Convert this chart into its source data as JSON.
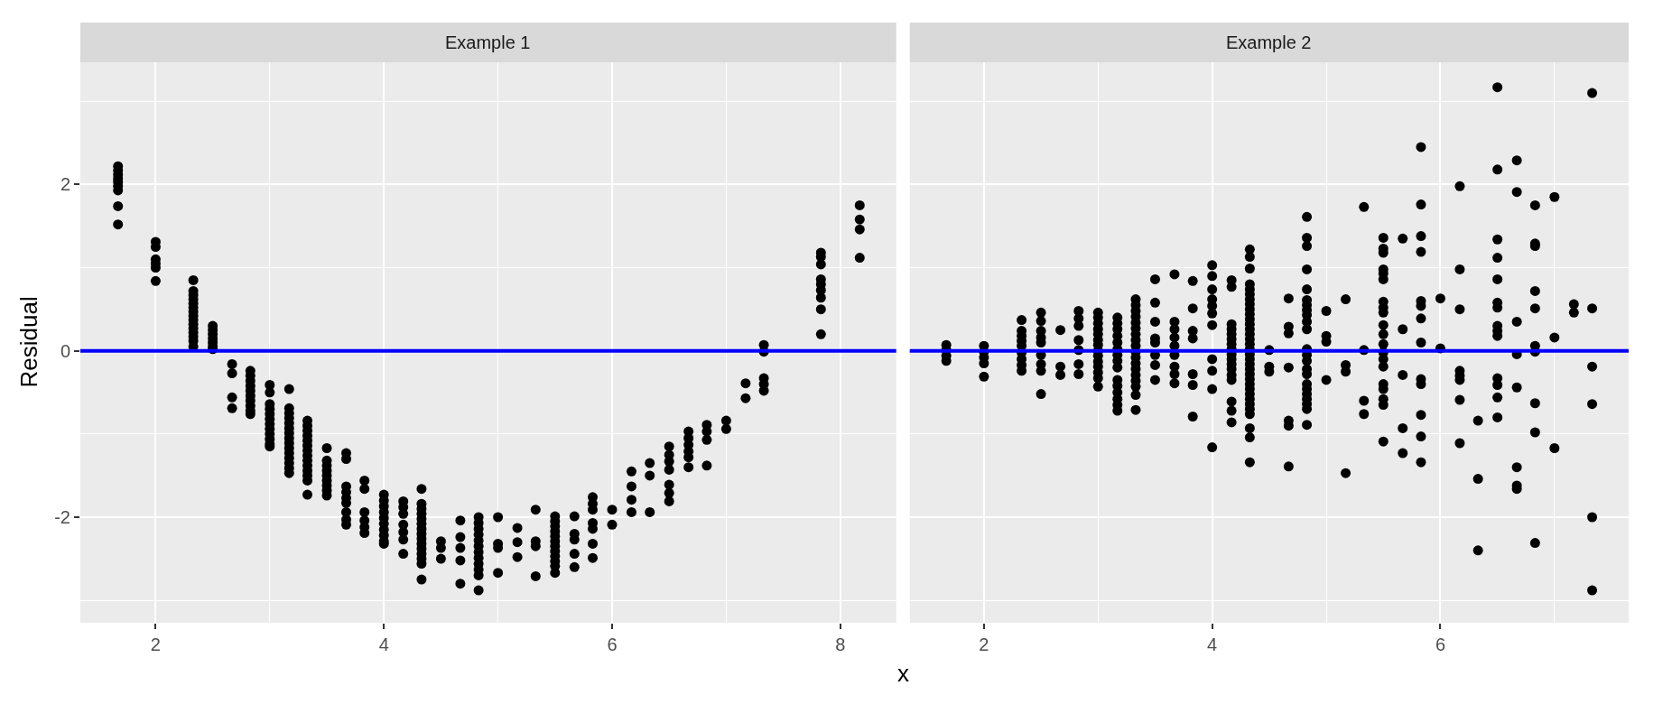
{
  "chart_data": [
    {
      "type": "scatter",
      "title": "Example 1",
      "xlabel": "x",
      "ylabel": "Residual",
      "marker": "circle",
      "grid": true,
      "xlim": [
        1.34,
        8.49
      ],
      "xticks": [
        2,
        4,
        6,
        8
      ],
      "ylim": [
        -3.27,
        3.47
      ],
      "yticks": [
        -2,
        0,
        2
      ],
      "ref_lines": [
        {
          "axis": "y",
          "value": 0,
          "color": "#0000ff"
        }
      ],
      "series": [
        {
          "color": "#000000",
          "x": [
            1.67,
            1.67,
            1.67,
            1.67,
            1.67,
            1.67,
            1.67,
            1.67,
            1.67,
            2,
            2,
            2,
            2,
            2,
            2,
            2.33,
            2.33,
            2.33,
            2.33,
            2.33,
            2.33,
            2.33,
            2.33,
            2.33,
            2.33,
            2.33,
            2.33,
            2.33,
            2.33,
            2.33,
            2.5,
            2.5,
            2.5,
            2.5,
            2.5,
            2.5,
            2.5,
            2.67,
            2.67,
            2.67,
            2.67,
            2.83,
            2.83,
            2.83,
            2.83,
            2.83,
            2.83,
            2.83,
            2.83,
            2.83,
            2.83,
            3,
            3,
            3,
            3,
            3,
            3,
            3,
            3,
            3,
            3,
            3,
            3,
            3.17,
            3.17,
            3.17,
            3.17,
            3.17,
            3.17,
            3.17,
            3.17,
            3.17,
            3.17,
            3.17,
            3.17,
            3.17,
            3.17,
            3.17,
            3.33,
            3.33,
            3.33,
            3.33,
            3.33,
            3.33,
            3.33,
            3.33,
            3.33,
            3.33,
            3.33,
            3.33,
            3.33,
            3.33,
            3.5,
            3.5,
            3.5,
            3.5,
            3.5,
            3.5,
            3.5,
            3.5,
            3.5,
            3.67,
            3.67,
            3.67,
            3.67,
            3.67,
            3.67,
            3.67,
            3.67,
            3.67,
            3.83,
            3.83,
            3.83,
            3.83,
            3.83,
            3.83,
            4,
            4,
            4,
            4,
            4,
            4,
            4,
            4,
            4,
            4,
            4.17,
            4.17,
            4.17,
            4.17,
            4.17,
            4.17,
            4.17,
            4.33,
            4.33,
            4.33,
            4.33,
            4.33,
            4.33,
            4.33,
            4.33,
            4.33,
            4.33,
            4.33,
            4.33,
            4.33,
            4.33,
            4.33,
            4.5,
            4.5,
            4.5,
            4.67,
            4.67,
            4.67,
            4.67,
            4.67,
            4.83,
            4.83,
            4.83,
            4.83,
            4.83,
            4.83,
            4.83,
            4.83,
            4.83,
            4.83,
            4.83,
            4.83,
            5,
            5,
            5,
            5,
            5.17,
            5.17,
            5.17,
            5.33,
            5.33,
            5.33,
            5.33,
            5.5,
            5.5,
            5.5,
            5.5,
            5.5,
            5.5,
            5.5,
            5.5,
            5.5,
            5.5,
            5.5,
            5.5,
            5.67,
            5.67,
            5.67,
            5.67,
            5.67,
            5.83,
            5.83,
            5.83,
            5.83,
            5.83,
            5.83,
            5.83,
            6,
            6,
            6.17,
            6.17,
            6.17,
            6.17,
            6.33,
            6.33,
            6.33,
            6.5,
            6.5,
            6.5,
            6.5,
            6.5,
            6.5,
            6.5,
            6.67,
            6.67,
            6.67,
            6.67,
            6.67,
            6.67,
            6.83,
            6.83,
            6.83,
            6.83,
            7,
            7,
            7.17,
            7.17,
            7.33,
            7.33,
            7.33,
            7.33,
            7.33,
            7.83,
            7.83,
            7.83,
            7.83,
            7.83,
            7.83,
            7.83,
            7.83,
            7.83,
            8.17,
            8.17,
            8.17,
            8.17
          ],
          "values": [
            2.22,
            2.17,
            2.12,
            2.07,
            2.03,
            1.98,
            1.93,
            1.74,
            1.52,
            1.31,
            1.25,
            1.1,
            1.05,
            1.0,
            0.84,
            0.85,
            0.72,
            0.67,
            0.62,
            0.57,
            0.52,
            0.47,
            0.42,
            0.37,
            0.32,
            0.27,
            0.22,
            0.17,
            0.12,
            0.05,
            0.3,
            0.25,
            0.2,
            0.15,
            0.1,
            0.05,
            0.02,
            -0.16,
            -0.27,
            -0.56,
            -0.69,
            -0.24,
            -0.3,
            -0.36,
            -0.42,
            -0.48,
            -0.54,
            -0.6,
            -0.66,
            -0.72,
            -0.76,
            -0.41,
            -0.5,
            -0.64,
            -0.7,
            -0.76,
            -0.82,
            -0.88,
            -0.94,
            -1.0,
            -1.06,
            -1.12,
            -1.15,
            -0.46,
            -0.69,
            -0.75,
            -0.81,
            -0.87,
            -0.93,
            -0.99,
            -1.05,
            -1.11,
            -1.17,
            -1.23,
            -1.29,
            -1.35,
            -1.41,
            -1.47,
            -0.84,
            -0.9,
            -0.96,
            -1.02,
            -1.08,
            -1.14,
            -1.2,
            -1.26,
            -1.32,
            -1.38,
            -1.44,
            -1.5,
            -1.56,
            -1.73,
            -1.17,
            -1.32,
            -1.38,
            -1.44,
            -1.5,
            -1.56,
            -1.62,
            -1.68,
            -1.74,
            -1.23,
            -1.3,
            -1.63,
            -1.7,
            -1.77,
            -1.83,
            -1.94,
            -2.03,
            -2.09,
            -1.56,
            -1.66,
            -1.94,
            -2.04,
            -2.12,
            -2.19,
            -1.73,
            -1.8,
            -1.87,
            -1.94,
            -2.01,
            -2.08,
            -2.15,
            -2.22,
            -2.29,
            -2.32,
            -1.81,
            -1.88,
            -1.96,
            -2.09,
            -2.18,
            -2.27,
            -2.44,
            -1.66,
            -1.84,
            -1.9,
            -1.96,
            -2.02,
            -2.08,
            -2.14,
            -2.2,
            -2.26,
            -2.32,
            -2.38,
            -2.44,
            -2.5,
            -2.56,
            -2.75,
            -2.29,
            -2.37,
            -2.5,
            -2.04,
            -2.24,
            -2.37,
            -2.52,
            -2.8,
            -2.0,
            -2.07,
            -2.14,
            -2.21,
            -2.28,
            -2.35,
            -2.42,
            -2.49,
            -2.56,
            -2.63,
            -2.7,
            -2.88,
            -2.0,
            -2.32,
            -2.37,
            -2.67,
            -2.13,
            -2.3,
            -2.48,
            -1.91,
            -2.29,
            -2.35,
            -2.71,
            -1.99,
            -2.05,
            -2.11,
            -2.17,
            -2.23,
            -2.29,
            -2.35,
            -2.41,
            -2.47,
            -2.53,
            -2.59,
            -2.67,
            -1.99,
            -2.2,
            -2.27,
            -2.44,
            -2.6,
            -1.76,
            -1.84,
            -1.91,
            -2.07,
            -2.14,
            -2.32,
            -2.49,
            -1.91,
            -2.09,
            -1.45,
            -1.63,
            -1.79,
            -1.94,
            -1.35,
            -1.5,
            -1.94,
            -1.15,
            -1.25,
            -1.33,
            -1.43,
            -1.61,
            -1.71,
            -1.81,
            -0.97,
            -1.05,
            -1.13,
            -1.21,
            -1.28,
            -1.4,
            -0.89,
            -0.97,
            -1.07,
            -1.38,
            -0.84,
            -0.94,
            -0.39,
            -0.57,
            0.07,
            -0.01,
            -0.33,
            -0.4,
            -0.48,
            1.18,
            1.13,
            1.04,
            0.86,
            0.8,
            0.73,
            0.64,
            0.5,
            0.2,
            1.75,
            1.58,
            1.46,
            1.12
          ]
        }
      ]
    },
    {
      "type": "scatter",
      "title": "Example 2",
      "marker": "circle",
      "grid": true,
      "tick_labels": "x",
      "xlim": [
        1.35,
        7.65
      ],
      "xticks": [
        2,
        4,
        6
      ],
      "ylim": [
        -3.27,
        3.47
      ],
      "yticks": [
        -2,
        0,
        2
      ],
      "ref_lines": [
        {
          "axis": "y",
          "value": 0,
          "color": "#0000ff"
        }
      ],
      "series": [
        {
          "color": "#000000",
          "x": [
            1.67,
            1.67,
            1.67,
            1.67,
            2,
            2,
            2,
            2,
            2,
            2.33,
            2.33,
            2.33,
            2.33,
            2.33,
            2.33,
            2.33,
            2.33,
            2.33,
            2.5,
            2.5,
            2.5,
            2.5,
            2.5,
            2.5,
            2.5,
            2.5,
            2.5,
            2.67,
            2.67,
            2.67,
            2.83,
            2.83,
            2.83,
            2.83,
            2.83,
            2.83,
            2.83,
            3,
            3,
            3,
            3,
            3,
            3,
            3,
            3,
            3,
            3,
            3,
            3,
            3,
            3,
            3.17,
            3.17,
            3.17,
            3.17,
            3.17,
            3.17,
            3.17,
            3.17,
            3.17,
            3.17,
            3.17,
            3.17,
            3.17,
            3.17,
            3.17,
            3.33,
            3.33,
            3.33,
            3.33,
            3.33,
            3.33,
            3.33,
            3.33,
            3.33,
            3.33,
            3.33,
            3.33,
            3.33,
            3.33,
            3.33,
            3.33,
            3.33,
            3.33,
            3.5,
            3.5,
            3.5,
            3.5,
            3.5,
            3.5,
            3.5,
            3.5,
            3.67,
            3.67,
            3.67,
            3.67,
            3.67,
            3.67,
            3.67,
            3.67,
            3.67,
            3.83,
            3.83,
            3.83,
            3.83,
            3.83,
            3.83,
            3.83,
            4,
            4,
            4,
            4,
            4,
            4,
            4,
            4,
            4,
            4,
            4,
            4.17,
            4.17,
            4.17,
            4.17,
            4.17,
            4.17,
            4.17,
            4.17,
            4.17,
            4.17,
            4.17,
            4.17,
            4.17,
            4.17,
            4.17,
            4.17,
            4.17,
            4.33,
            4.33,
            4.33,
            4.33,
            4.33,
            4.33,
            4.33,
            4.33,
            4.33,
            4.33,
            4.33,
            4.33,
            4.33,
            4.33,
            4.33,
            4.33,
            4.33,
            4.33,
            4.33,
            4.33,
            4.33,
            4.33,
            4.33,
            4.33,
            4.33,
            4.33,
            4.33,
            4.33,
            4.33,
            4.33,
            4.33,
            4.33,
            4.33,
            4.5,
            4.5,
            4.5,
            4.67,
            4.67,
            4.67,
            4.67,
            4.67,
            4.67,
            4.67,
            4.83,
            4.83,
            4.83,
            4.83,
            4.83,
            4.83,
            4.83,
            4.83,
            4.83,
            4.83,
            4.83,
            4.83,
            4.83,
            4.83,
            4.83,
            4.83,
            4.83,
            4.83,
            4.83,
            4.83,
            4.83,
            4.83,
            4.83,
            5,
            5,
            5,
            5,
            5.17,
            5.17,
            5.17,
            5.17,
            5.33,
            5.33,
            5.33,
            5.33,
            5.5,
            5.5,
            5.5,
            5.5,
            5.5,
            5.5,
            5.5,
            5.5,
            5.5,
            5.5,
            5.5,
            5.5,
            5.5,
            5.5,
            5.5,
            5.5,
            5.5,
            5.5,
            5.5,
            5.5,
            5.67,
            5.67,
            5.67,
            5.67,
            5.67,
            5.83,
            5.83,
            5.83,
            5.83,
            5.83,
            5.83,
            5.83,
            5.83,
            5.83,
            5.83,
            5.83,
            5.83,
            5.83,
            6,
            6,
            6.17,
            6.17,
            6.17,
            6.17,
            6.17,
            6.17,
            6.17,
            6.17,
            6.33,
            6.33,
            6.33,
            6.5,
            6.5,
            6.5,
            6.5,
            6.5,
            6.5,
            6.5,
            6.5,
            6.5,
            6.5,
            6.5,
            6.5,
            6.5,
            6.5,
            6.67,
            6.67,
            6.67,
            6.67,
            6.67,
            6.67,
            6.67,
            6.67,
            6.83,
            6.83,
            6.83,
            6.83,
            6.83,
            6.83,
            6.83,
            6.83,
            6.83,
            6.83,
            7,
            7,
            7,
            7.17,
            7.17,
            7.33,
            7.33,
            7.33,
            7.33,
            7.33,
            7.33
          ],
          "values": [
            0.07,
            0.01,
            -0.06,
            -0.12,
            0.06,
            -0.01,
            -0.08,
            -0.15,
            -0.31,
            0.37,
            0.24,
            0.18,
            0.12,
            0.06,
            -0.02,
            -0.1,
            -0.17,
            -0.24,
            0.46,
            0.36,
            0.24,
            0.16,
            0.1,
            -0.05,
            -0.16,
            -0.24,
            -0.52,
            0.25,
            -0.19,
            -0.29,
            0.48,
            0.39,
            0.3,
            0.13,
            0.01,
            -0.16,
            -0.28,
            0.46,
            0.4,
            0.33,
            0.26,
            0.2,
            0.13,
            0.07,
            0.0,
            -0.06,
            -0.13,
            -0.19,
            -0.26,
            -0.33,
            -0.43,
            0.4,
            0.33,
            0.26,
            0.18,
            0.1,
            0.02,
            -0.05,
            -0.12,
            -0.2,
            -0.35,
            -0.42,
            -0.5,
            -0.58,
            -0.65,
            -0.72,
            0.62,
            0.55,
            0.48,
            0.41,
            0.34,
            0.27,
            0.2,
            0.13,
            0.06,
            -0.01,
            -0.08,
            -0.15,
            -0.22,
            -0.29,
            -0.36,
            -0.43,
            -0.53,
            -0.71,
            0.86,
            0.58,
            0.35,
            0.15,
            0.1,
            -0.05,
            -0.17,
            -0.35,
            0.92,
            0.35,
            0.26,
            0.16,
            0.06,
            -0.05,
            -0.19,
            -0.28,
            -0.39,
            0.84,
            0.51,
            0.24,
            0.15,
            -0.28,
            -0.41,
            -0.79,
            1.03,
            0.9,
            0.74,
            0.62,
            0.54,
            0.45,
            0.31,
            -0.1,
            -0.24,
            -0.46,
            -1.16,
            0.85,
            0.77,
            0.32,
            0.26,
            0.2,
            0.14,
            0.08,
            0.02,
            -0.04,
            -0.1,
            -0.16,
            -0.22,
            -0.29,
            -0.35,
            -0.61,
            -0.72,
            -0.86,
            1.22,
            1.13,
            0.99,
            0.8,
            0.74,
            0.68,
            0.62,
            0.56,
            0.5,
            0.44,
            0.38,
            0.32,
            0.26,
            0.2,
            0.14,
            0.08,
            0.02,
            -0.04,
            -0.1,
            -0.16,
            -0.22,
            -0.28,
            -0.34,
            -0.4,
            -0.46,
            -0.52,
            -0.58,
            -0.64,
            -0.7,
            -0.76,
            -0.93,
            -1.04,
            -1.34,
            0.01,
            -0.19,
            -0.25,
            0.63,
            0.29,
            0.21,
            -0.2,
            -0.84,
            -0.9,
            -1.39,
            1.61,
            1.36,
            1.26,
            0.98,
            0.74,
            0.61,
            0.55,
            0.49,
            0.43,
            0.35,
            0.26,
            0.02,
            -0.05,
            -0.12,
            -0.22,
            -0.28,
            -0.4,
            -0.46,
            -0.52,
            -0.58,
            -0.64,
            -0.7,
            -0.89,
            0.48,
            0.18,
            0.11,
            -0.35,
            0.62,
            -0.17,
            -0.25,
            -1.47,
            1.73,
            0.01,
            -0.6,
            -0.76,
            1.36,
            1.23,
            1.18,
            0.98,
            0.93,
            0.86,
            0.59,
            0.52,
            0.46,
            0.31,
            0.2,
            0.08,
            -0.02,
            -0.1,
            -0.19,
            -0.4,
            -0.46,
            -0.58,
            -0.65,
            -1.09,
            1.35,
            0.26,
            -0.29,
            -0.93,
            -1.23,
            2.45,
            1.76,
            1.38,
            1.19,
            0.6,
            0.54,
            0.39,
            0.1,
            -0.34,
            -0.4,
            -0.77,
            -1.03,
            -1.34,
            0.63,
            0.03,
            1.98,
            0.98,
            0.5,
            -0.24,
            -0.3,
            -0.35,
            -0.59,
            -1.11,
            -0.84,
            -1.54,
            -2.4,
            3.17,
            2.18,
            1.34,
            1.12,
            0.86,
            0.58,
            0.52,
            0.3,
            0.24,
            0.18,
            -0.33,
            -0.41,
            -0.56,
            -0.8,
            2.29,
            1.91,
            0.35,
            -0.04,
            -0.44,
            -1.4,
            -1.62,
            -1.66,
            1.75,
            1.29,
            1.26,
            0.72,
            0.51,
            0.06,
            -0.01,
            -0.63,
            -0.98,
            -2.31,
            1.85,
            0.16,
            -1.17,
            0.56,
            0.46,
            3.1,
            0.51,
            -0.19,
            -0.64,
            -2.0,
            -2.88
          ]
        }
      ]
    }
  ]
}
